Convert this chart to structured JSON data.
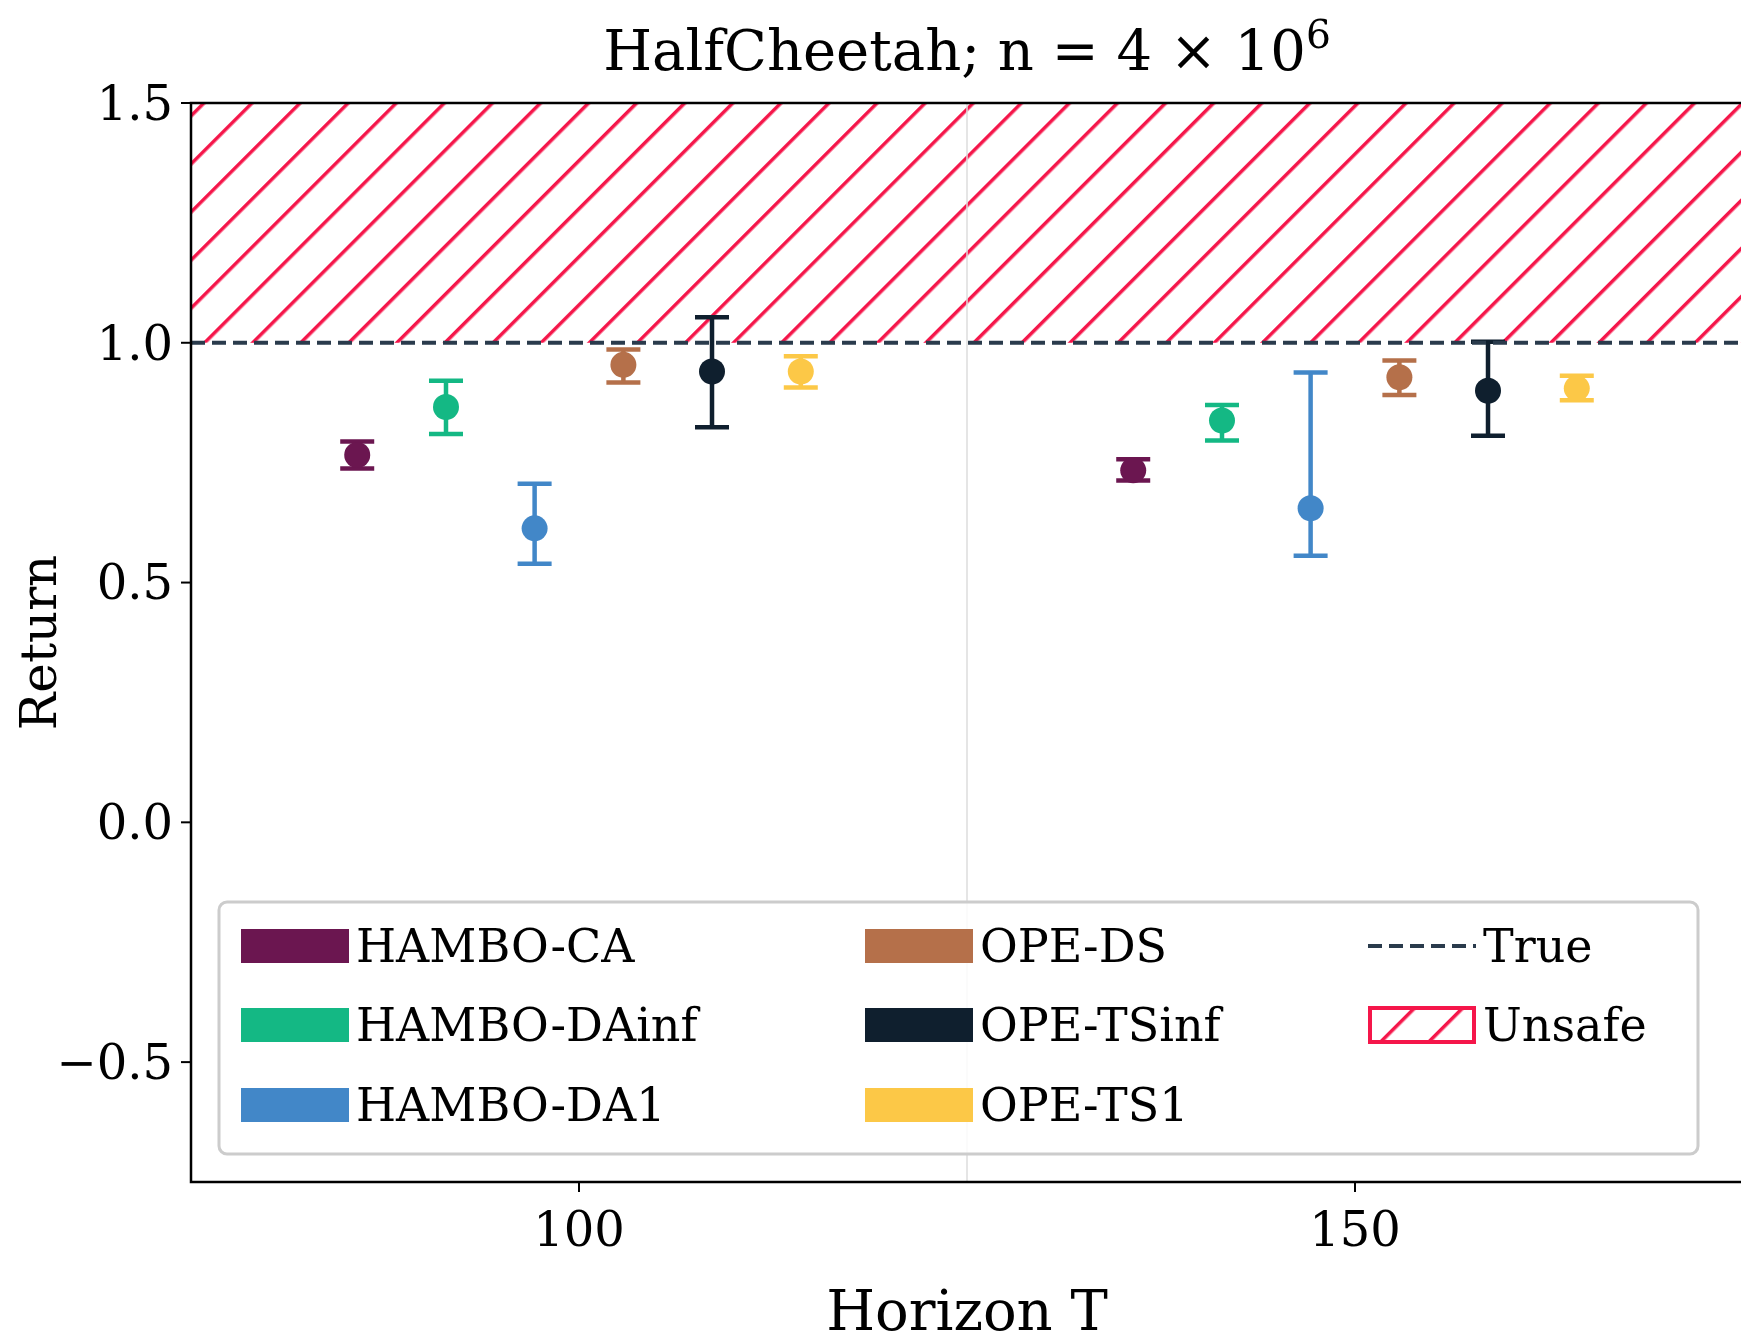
{
  "chart_data": {
    "type": "scatter",
    "title": "HalfCheetah; n = 4 × 10$^{6}$",
    "xlabel": "Horizon T",
    "ylabel": "Return",
    "xlim": [
      75,
      175
    ],
    "xticks": [
      100,
      150
    ],
    "ylim": [
      -0.75,
      1.5
    ],
    "yticks": [
      {
        "value": -0.5,
        "label": "−0.5"
      },
      {
        "value": 0,
        "label": "0.0"
      },
      {
        "value": 0.5,
        "label": "0.5"
      },
      {
        "value": 1,
        "label": "1.0"
      },
      {
        "value": 1.5,
        "label": "1.5"
      }
    ],
    "marker": "circle",
    "grid": false,
    "legend": "bottom",
    "series": [
      {
        "name": "HAMBO-CA",
        "color": "#6b1650",
        "x": [
          85.71,
          135.71
        ],
        "values": [
          0.766,
          0.734
        ],
        "errors": [
          [
            0.738,
            0.794
          ],
          [
            0.713,
            0.757
          ]
        ]
      },
      {
        "name": "HAMBO-DAinf",
        "color": "#14b884",
        "x": [
          91.43,
          141.43
        ],
        "values": [
          0.866,
          0.838
        ],
        "errors": [
          [
            0.81,
            0.921
          ],
          [
            0.796,
            0.87
          ]
        ]
      },
      {
        "name": "HAMBO-DA1",
        "color": "#4287c8",
        "x": [
          97.14,
          147.14
        ],
        "values": [
          0.613,
          0.655
        ],
        "errors": [
          [
            0.539,
            0.706
          ],
          [
            0.556,
            0.938
          ]
        ]
      },
      {
        "name": "OPE-DS",
        "color": "#b5704a",
        "x": [
          102.86,
          152.86
        ],
        "values": [
          0.954,
          0.928
        ],
        "errors": [
          [
            0.917,
            0.986
          ],
          [
            0.891,
            0.963
          ]
        ]
      },
      {
        "name": "OPE-TSinf",
        "color": "#0f1f2e",
        "x": [
          108.57,
          158.57
        ],
        "values": [
          0.94,
          0.9
        ],
        "errors": [
          [
            0.824,
            1.053
          ],
          [
            0.806,
            1.002
          ]
        ]
      },
      {
        "name": "OPE-TS1",
        "color": "#fcc847",
        "x": [
          114.29,
          164.29
        ],
        "values": [
          0.94,
          0.905
        ],
        "errors": [
          [
            0.907,
            0.972
          ],
          [
            0.88,
            0.931
          ]
        ]
      }
    ],
    "ref_lines": [
      {
        "axis": "y",
        "value": 1,
        "label": "True",
        "color": "#2a3b4c",
        "line_style": "dashed"
      },
      {
        "axis": "x",
        "value": 125,
        "color": "#dddddd",
        "line_style": "solid"
      }
    ],
    "bands": [
      {
        "axis": "y",
        "from": 1,
        "to": 1.5,
        "label": "Unsafe",
        "color": "#f5164a"
      }
    ]
  }
}
